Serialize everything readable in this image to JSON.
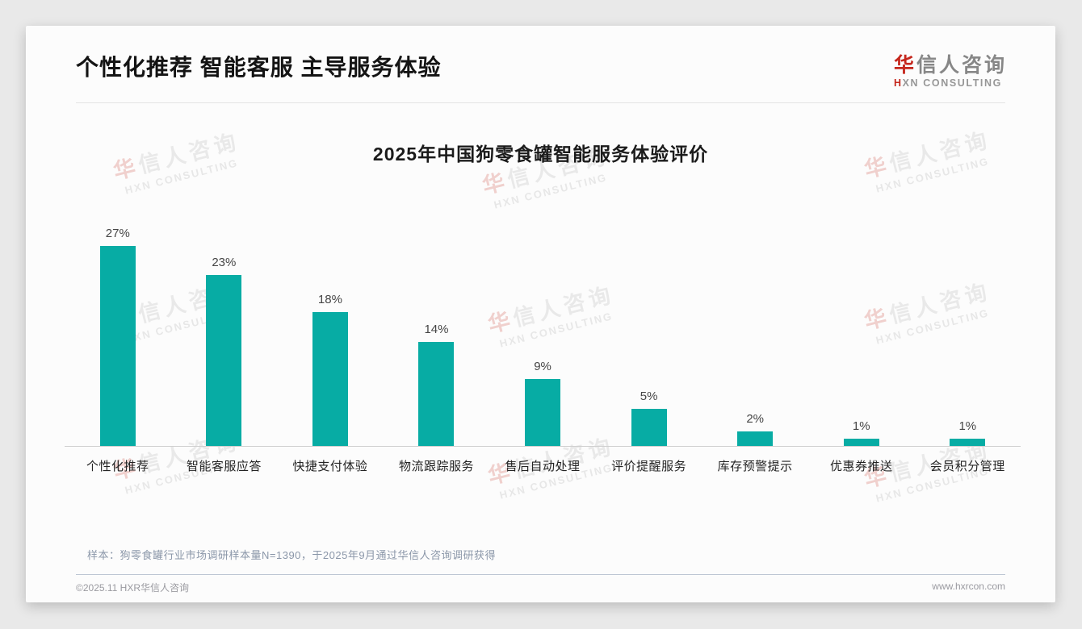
{
  "page": {
    "header_title": "个性化推荐 智能客服 主导服务体验",
    "logo": {
      "cn_first": "华",
      "cn_rest": "信人咨询",
      "en_first": "H",
      "en_rest": "XN CONSULTING"
    },
    "sample_note": "样本：狗零食罐行业市场调研样本量N=1390，于2025年9月通过华信人咨询调研获得",
    "footer_left": "©2025.11 HXR华信人咨询",
    "footer_right": "www.hxrcon.com"
  },
  "watermark": {
    "cn_first": "华",
    "cn_rest": "信人咨询",
    "en": "HXN CONSULTING"
  },
  "colors": {
    "bar": "#07aca4",
    "accent_red": "#c5271d",
    "card_bg": "#fcfcfc",
    "page_bg": "#e9e9e9",
    "axis_line": "#cfcfcf",
    "note_text": "#8b97a9"
  },
  "chart_data": {
    "type": "bar",
    "title": "2025年中国狗零食罐智能服务体验评价",
    "categories": [
      "个性化推荐",
      "智能客服应答",
      "快捷支付体验",
      "物流跟踪服务",
      "售后自动处理",
      "评价提醒服务",
      "库存预警提示",
      "优惠券推送",
      "会员积分管理"
    ],
    "values": [
      27,
      23,
      18,
      14,
      9,
      5,
      2,
      1,
      1
    ],
    "data_labels": [
      "27%",
      "23%",
      "18%",
      "14%",
      "9%",
      "5%",
      "2%",
      "1%",
      "1%"
    ],
    "unit": "%",
    "xlabel": "",
    "ylabel": "",
    "ylim": [
      0,
      30
    ],
    "grid": false,
    "legend": "none",
    "bar_color": "#07aca4"
  }
}
